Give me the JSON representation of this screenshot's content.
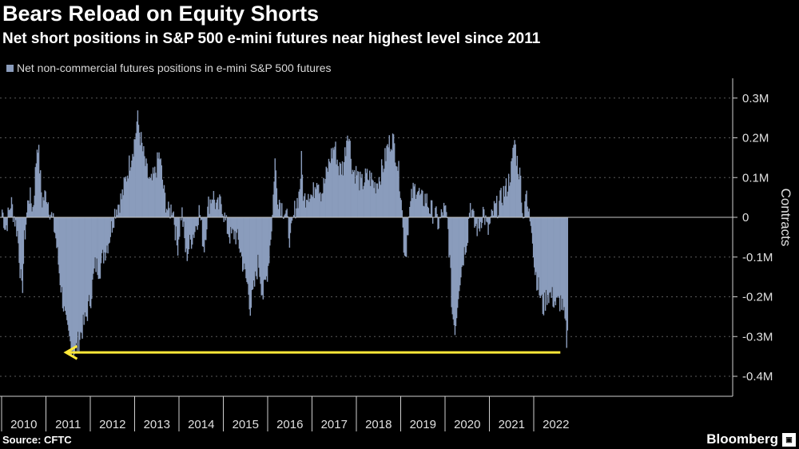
{
  "header": {
    "title": "Bears Reload on Equity Shorts",
    "subtitle": "Net short positions in S&P 500 e-mini futures near highest level since 2011"
  },
  "footer": {
    "source": "Source: CFTC",
    "brand": "Bloomberg"
  },
  "colors": {
    "background": "#000000",
    "bars": "#8a9cbc",
    "arrow": "#ffe838",
    "grid": "#5a5a5a"
  },
  "chart_data": {
    "type": "bar",
    "title": "Bears Reload on Equity Shorts",
    "subtitle": "Net short positions in S&P 500 e-mini futures near highest level since 2011",
    "ylabel": "Contracts",
    "ylim": [
      -400000,
      300000
    ],
    "y_ticks": [
      300000,
      200000,
      100000,
      0,
      -100000,
      -200000,
      -300000,
      -400000
    ],
    "y_tick_labels": [
      "0.3M",
      "0.2M",
      "0.1M",
      "0",
      "-0.1M",
      "-0.2M",
      "-0.3M",
      "-0.4M"
    ],
    "x_tick_labels": [
      "2010",
      "2011",
      "2012",
      "2013",
      "2014",
      "2015",
      "2016",
      "2017",
      "2018",
      "2019",
      "2020",
      "2021",
      "2022"
    ],
    "x_range": [
      2010.0,
      2022.85
    ],
    "grid": true,
    "y_axis_position": "right",
    "legend_position": "top-left",
    "annotation": {
      "type": "arrow",
      "direction": "left",
      "from_year": 2022.6,
      "to_year": 2011.45,
      "value": -340000
    },
    "series": [
      {
        "name": "Net non-commercial futures positions in e-mini S&P 500 futures",
        "anchors": [
          [
            2010.0,
            20000
          ],
          [
            2010.08,
            -30000
          ],
          [
            2010.2,
            40000
          ],
          [
            2010.35,
            -40000
          ],
          [
            2010.45,
            -200000
          ],
          [
            2010.5,
            -60000
          ],
          [
            2010.6,
            60000
          ],
          [
            2010.7,
            20000
          ],
          [
            2010.8,
            200000
          ],
          [
            2010.9,
            40000
          ],
          [
            2011.0,
            60000
          ],
          [
            2011.1,
            10000
          ],
          [
            2011.2,
            -40000
          ],
          [
            2011.3,
            -150000
          ],
          [
            2011.45,
            -280000
          ],
          [
            2011.55,
            -320000
          ],
          [
            2011.65,
            -340000
          ],
          [
            2011.75,
            -300000
          ],
          [
            2011.9,
            -250000
          ],
          [
            2012.0,
            -200000
          ],
          [
            2012.1,
            -120000
          ],
          [
            2012.2,
            -130000
          ],
          [
            2012.3,
            -90000
          ],
          [
            2012.4,
            -60000
          ],
          [
            2012.55,
            20000
          ],
          [
            2012.7,
            50000
          ],
          [
            2012.8,
            100000
          ],
          [
            2012.9,
            150000
          ],
          [
            2013.0,
            200000
          ],
          [
            2013.05,
            250000
          ],
          [
            2013.15,
            180000
          ],
          [
            2013.25,
            120000
          ],
          [
            2013.35,
            80000
          ],
          [
            2013.45,
            110000
          ],
          [
            2013.55,
            160000
          ],
          [
            2013.65,
            60000
          ],
          [
            2013.75,
            10000
          ],
          [
            2013.85,
            30000
          ],
          [
            2013.95,
            -80000
          ],
          [
            2014.05,
            20000
          ],
          [
            2014.15,
            -100000
          ],
          [
            2014.25,
            -60000
          ],
          [
            2014.35,
            -30000
          ],
          [
            2014.45,
            20000
          ],
          [
            2014.55,
            -80000
          ],
          [
            2014.65,
            30000
          ],
          [
            2014.75,
            60000
          ],
          [
            2014.85,
            20000
          ],
          [
            2014.95,
            40000
          ],
          [
            2015.05,
            -20000
          ],
          [
            2015.15,
            -50000
          ],
          [
            2015.25,
            -40000
          ],
          [
            2015.35,
            -70000
          ],
          [
            2015.45,
            -130000
          ],
          [
            2015.55,
            -180000
          ],
          [
            2015.6,
            -230000
          ],
          [
            2015.68,
            -180000
          ],
          [
            2015.78,
            -110000
          ],
          [
            2015.88,
            -200000
          ],
          [
            2015.95,
            -160000
          ],
          [
            2016.0,
            -120000
          ],
          [
            2016.1,
            10000
          ],
          [
            2016.15,
            150000
          ],
          [
            2016.2,
            60000
          ],
          [
            2016.3,
            30000
          ],
          [
            2016.4,
            10000
          ],
          [
            2016.5,
            -60000
          ],
          [
            2016.6,
            20000
          ],
          [
            2016.7,
            60000
          ],
          [
            2016.75,
            140000
          ],
          [
            2016.8,
            40000
          ],
          [
            2016.9,
            70000
          ],
          [
            2017.0,
            50000
          ],
          [
            2017.1,
            110000
          ],
          [
            2017.2,
            60000
          ],
          [
            2017.3,
            100000
          ],
          [
            2017.4,
            150000
          ],
          [
            2017.5,
            180000
          ],
          [
            2017.6,
            120000
          ],
          [
            2017.7,
            130000
          ],
          [
            2017.8,
            230000
          ],
          [
            2017.9,
            120000
          ],
          [
            2018.0,
            110000
          ],
          [
            2018.1,
            80000
          ],
          [
            2018.2,
            100000
          ],
          [
            2018.3,
            100000
          ],
          [
            2018.4,
            80000
          ],
          [
            2018.5,
            100000
          ],
          [
            2018.6,
            130000
          ],
          [
            2018.7,
            180000
          ],
          [
            2018.8,
            200000
          ],
          [
            2018.9,
            150000
          ],
          [
            2019.0,
            60000
          ],
          [
            2019.05,
            -60000
          ],
          [
            2019.1,
            -100000
          ],
          [
            2019.15,
            -20000
          ],
          [
            2019.25,
            60000
          ],
          [
            2019.35,
            80000
          ],
          [
            2019.45,
            40000
          ],
          [
            2019.55,
            50000
          ],
          [
            2019.65,
            20000
          ],
          [
            2019.75,
            10000
          ],
          [
            2019.85,
            -20000
          ],
          [
            2019.95,
            20000
          ],
          [
            2020.0,
            10000
          ],
          [
            2020.05,
            -20000
          ],
          [
            2020.1,
            -120000
          ],
          [
            2020.15,
            -240000
          ],
          [
            2020.22,
            -280000
          ],
          [
            2020.3,
            -170000
          ],
          [
            2020.4,
            -100000
          ],
          [
            2020.5,
            -40000
          ],
          [
            2020.55,
            40000
          ],
          [
            2020.65,
            -20000
          ],
          [
            2020.75,
            -30000
          ],
          [
            2020.85,
            20000
          ],
          [
            2020.95,
            -40000
          ],
          [
            2021.0,
            -20000
          ],
          [
            2021.1,
            20000
          ],
          [
            2021.2,
            30000
          ],
          [
            2021.3,
            60000
          ],
          [
            2021.4,
            80000
          ],
          [
            2021.5,
            130000
          ],
          [
            2021.55,
            200000
          ],
          [
            2021.6,
            150000
          ],
          [
            2021.7,
            90000
          ],
          [
            2021.75,
            -10000
          ],
          [
            2021.8,
            70000
          ],
          [
            2021.85,
            20000
          ],
          [
            2021.95,
            -20000
          ],
          [
            2022.0,
            -120000
          ],
          [
            2022.1,
            -180000
          ],
          [
            2022.2,
            -230000
          ],
          [
            2022.3,
            -190000
          ],
          [
            2022.4,
            -200000
          ],
          [
            2022.5,
            -220000
          ],
          [
            2022.6,
            -210000
          ],
          [
            2022.65,
            -240000
          ],
          [
            2022.7,
            -270000
          ],
          [
            2022.73,
            -310000
          ],
          [
            2022.75,
            -300000
          ]
        ]
      }
    ]
  }
}
